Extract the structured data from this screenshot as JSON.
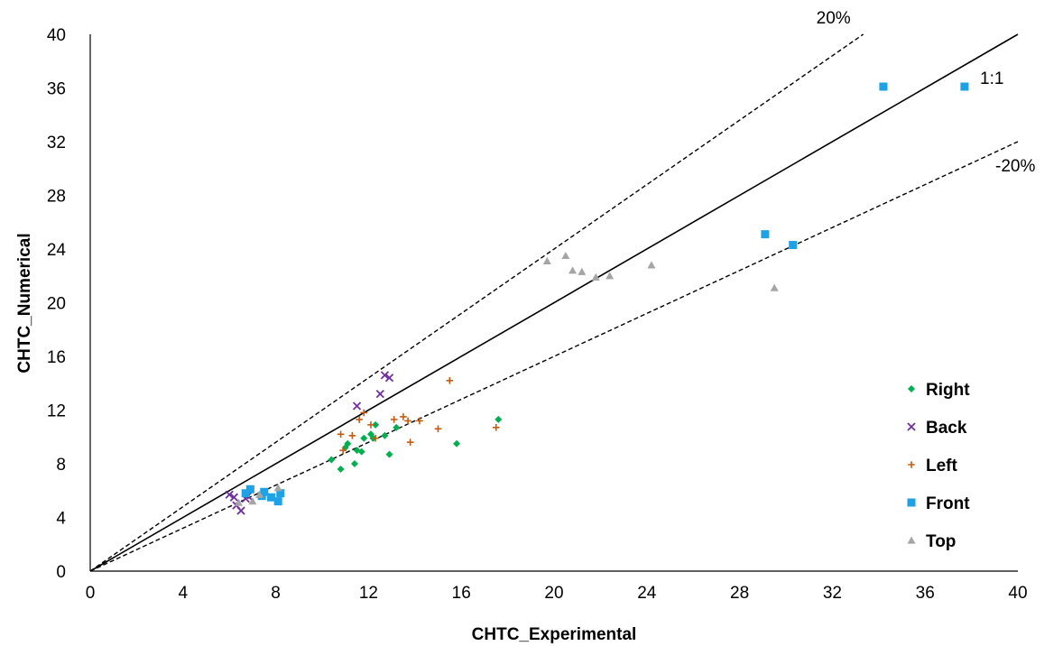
{
  "chart_data": {
    "type": "scatter",
    "title": "",
    "xlabel": "CHTC_Experimental",
    "ylabel": "CHTC_Numerical",
    "xlim": [
      0,
      40
    ],
    "ylim": [
      0,
      40
    ],
    "xticks": [
      "0",
      "4",
      "8",
      "12",
      "16",
      "20",
      "24",
      "28",
      "32",
      "36",
      "40"
    ],
    "yticks": [
      "0",
      "4",
      "8",
      "12",
      "16",
      "20",
      "24",
      "28",
      "32",
      "36",
      "40"
    ],
    "grid": false,
    "legend_position": "bottom-right",
    "reference_lines": [
      {
        "label": "1:1",
        "slope": 1.0,
        "style": "solid"
      },
      {
        "label": "20%",
        "slope": 1.2,
        "style": "dashed"
      },
      {
        "label": "-20%",
        "slope": 0.8,
        "style": "dashed"
      }
    ],
    "series": [
      {
        "name": "Right",
        "marker": "diamond",
        "color": "#00B050",
        "points": [
          [
            10.4,
            8.3
          ],
          [
            10.8,
            7.6
          ],
          [
            11.0,
            9.2
          ],
          [
            11.1,
            9.5
          ],
          [
            11.4,
            8.0
          ],
          [
            11.5,
            9.0
          ],
          [
            11.7,
            8.9
          ],
          [
            11.8,
            9.9
          ],
          [
            12.1,
            10.2
          ],
          [
            12.2,
            9.9
          ],
          [
            12.3,
            10.9
          ],
          [
            12.7,
            10.1
          ],
          [
            12.9,
            8.7
          ],
          [
            13.2,
            10.7
          ],
          [
            15.8,
            9.5
          ],
          [
            17.6,
            11.3
          ]
        ]
      },
      {
        "name": "Back",
        "marker": "x",
        "color": "#7030A0",
        "points": [
          [
            6.0,
            5.7
          ],
          [
            6.2,
            5.5
          ],
          [
            6.3,
            4.9
          ],
          [
            6.5,
            4.5
          ],
          [
            6.7,
            5.4
          ],
          [
            6.8,
            5.6
          ],
          [
            11.5,
            12.3
          ],
          [
            12.5,
            13.2
          ],
          [
            12.7,
            14.6
          ],
          [
            12.9,
            14.4
          ]
        ]
      },
      {
        "name": "Left",
        "marker": "plus",
        "color": "#C55A11",
        "points": [
          [
            10.8,
            10.2
          ],
          [
            10.9,
            9.0
          ],
          [
            11.3,
            10.1
          ],
          [
            11.6,
            11.3
          ],
          [
            11.8,
            11.8
          ],
          [
            12.1,
            10.9
          ],
          [
            12.3,
            9.9
          ],
          [
            13.1,
            11.3
          ],
          [
            13.5,
            11.5
          ],
          [
            13.7,
            11.2
          ],
          [
            13.8,
            9.6
          ],
          [
            14.2,
            11.2
          ],
          [
            15.0,
            10.6
          ],
          [
            15.5,
            14.2
          ],
          [
            17.5,
            10.7
          ]
        ]
      },
      {
        "name": "Front",
        "marker": "square",
        "color": "#1FA1E6",
        "points": [
          [
            6.7,
            5.8
          ],
          [
            6.9,
            6.1
          ],
          [
            7.4,
            5.6
          ],
          [
            7.5,
            5.9
          ],
          [
            7.8,
            5.5
          ],
          [
            8.1,
            5.2
          ],
          [
            8.2,
            5.8
          ],
          [
            29.1,
            25.1
          ],
          [
            30.3,
            24.3
          ],
          [
            34.2,
            36.1
          ],
          [
            37.7,
            36.1
          ]
        ]
      },
      {
        "name": "Top",
        "marker": "triangle",
        "color": "#A5A5A5",
        "points": [
          [
            6.4,
            5.1
          ],
          [
            7.0,
            5.2
          ],
          [
            7.3,
            5.7
          ],
          [
            8.1,
            6.2
          ],
          [
            19.7,
            23.1
          ],
          [
            20.5,
            23.5
          ],
          [
            20.8,
            22.4
          ],
          [
            21.2,
            22.3
          ],
          [
            21.8,
            21.9
          ],
          [
            22.4,
            22.0
          ],
          [
            24.2,
            22.8
          ],
          [
            29.5,
            21.1
          ]
        ]
      }
    ]
  }
}
